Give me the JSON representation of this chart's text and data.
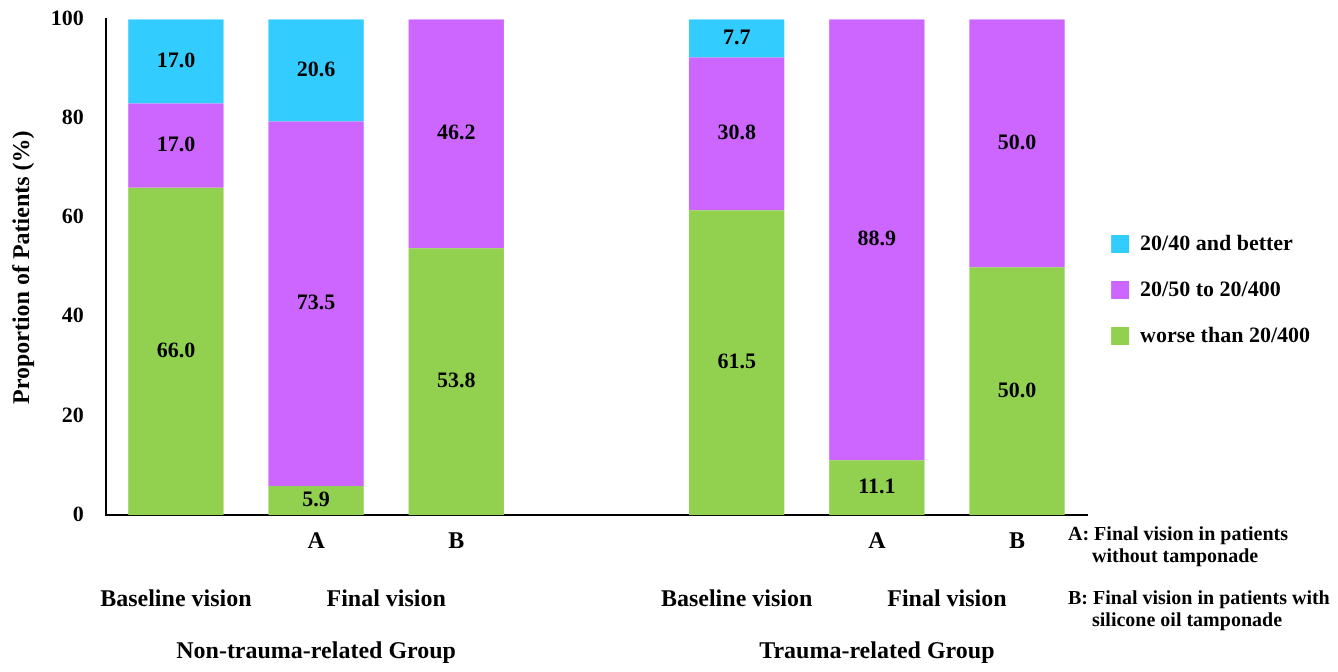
{
  "chart_data": {
    "type": "bar",
    "stacked": true,
    "ylabel": "Proportion of Patients (%)",
    "categories": [
      null,
      "A",
      "B",
      null,
      null,
      "A",
      "B"
    ],
    "series": [
      {
        "name": "worse than 20/400",
        "color": "#92d050",
        "values": [
          66.0,
          5.9,
          53.8,
          null,
          61.5,
          11.1,
          50.0
        ],
        "value_labels": [
          "66.0",
          "5.9",
          "53.8",
          null,
          "61.5",
          "11.1",
          "50.0"
        ]
      },
      {
        "name": "20/50 to 20/400",
        "color": "#cc66ff",
        "values": [
          17.0,
          73.5,
          46.2,
          null,
          30.8,
          88.9,
          50.0
        ],
        "value_labels": [
          "17.0",
          "73.5",
          "46.2",
          null,
          "30.8",
          "88.9",
          "50.0"
        ]
      },
      {
        "name": "20/40 and better",
        "color": "#33ccff",
        "values": [
          17.0,
          20.6,
          null,
          null,
          7.7,
          null,
          null
        ],
        "value_labels": [
          "17.0",
          "20.6",
          null,
          null,
          "7.7",
          null,
          null
        ]
      }
    ],
    "ylim": [
      0,
      100
    ],
    "yticks": [
      0,
      20,
      40,
      60,
      80,
      100
    ],
    "grid": false,
    "legend": "right",
    "annotations": [
      "Baseline vision",
      "Final vision",
      "Baseline vision",
      "Final vision",
      "Non-trauma-related Group",
      "Trauma-related Group",
      "A: Final vision in patients without tamponade",
      "B: Final vision  in patients with silicone oil tamponade"
    ]
  }
}
